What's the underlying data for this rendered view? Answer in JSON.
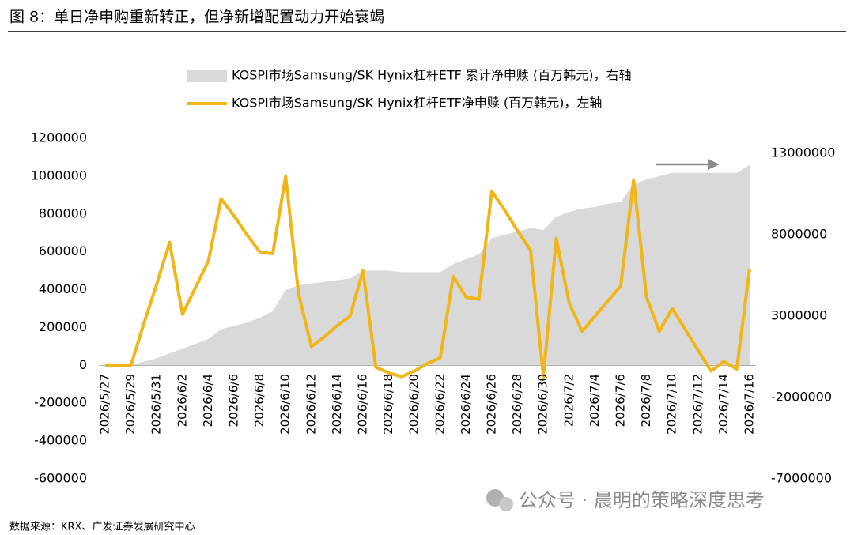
{
  "chart_data": {
    "type": "line",
    "title": "图 8：单日净申购重新转正，但净新增配置动力开始衰竭",
    "source": "数据来源：KRX、广发证券发展研究中心",
    "watermark": "公众号 · 晨明的策略深度思考",
    "categories": [
      "2026/5/27",
      null,
      "2026/5/29",
      null,
      "2026/5/31",
      null,
      "2026/6/2",
      null,
      "2026/6/4",
      null,
      "2026/6/6",
      null,
      "2026/6/8",
      null,
      "2026/6/10",
      null,
      "2026/6/12",
      null,
      "2026/6/14",
      null,
      "2026/6/16",
      null,
      "2026/6/18",
      null,
      "2026/6/20",
      null,
      "2026/6/22",
      null,
      "2026/6/24",
      null,
      "2026/6/26",
      null,
      "2026/6/28",
      null,
      "2026/6/30",
      null,
      "2026/7/2",
      null,
      "2026/7/4",
      null,
      "2026/7/6",
      null,
      "2026/7/8",
      null,
      "2026/7/10",
      null,
      "2026/7/12",
      null,
      "2026/7/14",
      null,
      "2026/7/16"
    ],
    "series": [
      {
        "name": "KOSPI市场Samsung/SK Hynix杠杆ETF 累计净申赎 (百万韩元)，右轴",
        "type": "area",
        "axis": "y2",
        "color": "#d9d9d9",
        "values": [
          0,
          0,
          0,
          200000,
          400000,
          700000,
          1000000,
          1300000,
          1600000,
          2200000,
          2400000,
          2600000,
          2900000,
          3300000,
          4600000,
          4900000,
          5000000,
          5100000,
          5200000,
          5300000,
          5800000,
          5800000,
          5800000,
          5700000,
          5700000,
          5700000,
          5700000,
          6200000,
          6500000,
          6800000,
          7800000,
          8000000,
          8200000,
          8400000,
          8300000,
          9100000,
          9400000,
          9600000,
          9700000,
          9900000,
          10000000,
          11100000,
          11400000,
          11600000,
          11800000,
          11800000,
          11800000,
          11800000,
          11800000,
          11800000,
          12300000
        ]
      },
      {
        "name": "KOSPI市场Samsung/SK Hynix杠杆ETF净申赎 (百万韩元)，左轴",
        "type": "line",
        "color": "#f0b518",
        "values": [
          0,
          0,
          0,
          220000,
          430000,
          650000,
          270000,
          410000,
          550000,
          880000,
          790000,
          690000,
          600000,
          590000,
          1000000,
          380000,
          100000,
          150000,
          210000,
          260000,
          500000,
          -10000,
          -40000,
          -60000,
          -30000,
          10000,
          40000,
          470000,
          360000,
          350000,
          920000,
          820000,
          710000,
          610000,
          -60000,
          670000,
          330000,
          180000,
          260000,
          340000,
          420000,
          980000,
          360000,
          180000,
          300000,
          190000,
          80000,
          -30000,
          20000,
          -20000,
          510000
        ]
      }
    ],
    "ylim": [
      -600000,
      1200000
    ],
    "yticks": [
      -600000,
      -400000,
      -200000,
      0,
      200000,
      400000,
      600000,
      800000,
      1000000,
      1200000
    ],
    "y2lim": [
      -7000000,
      13000000
    ],
    "y2ticks": [
      -7000000,
      -2000000,
      3000000,
      8000000,
      13000000
    ],
    "grid": false,
    "legend": "top"
  }
}
